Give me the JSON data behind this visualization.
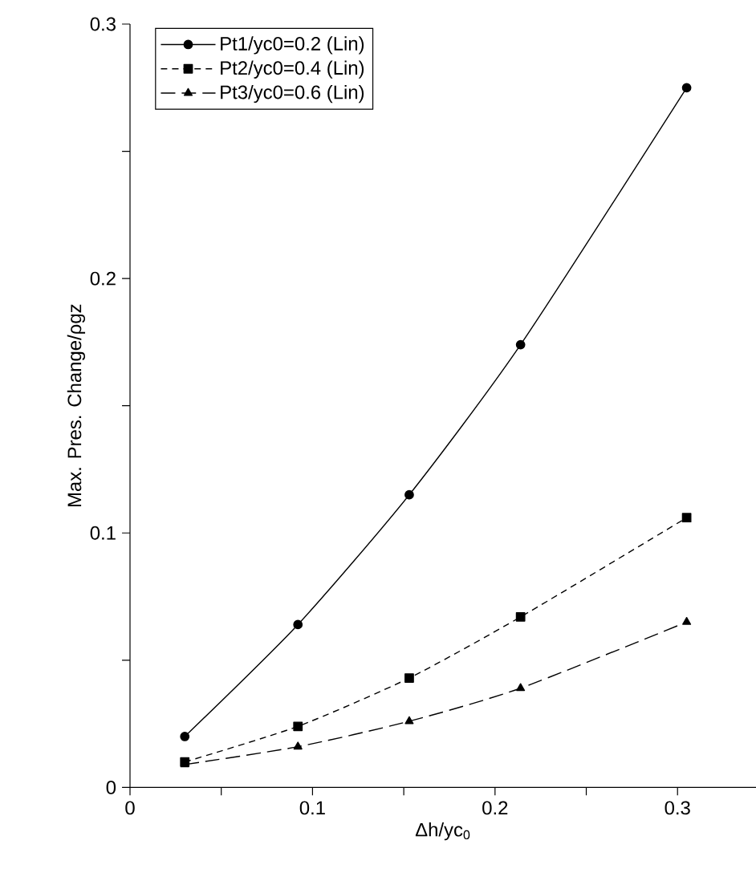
{
  "chart_data": {
    "type": "line",
    "xlabel": "Δh/yc$_{0}$",
    "ylabel": "Max. Pres. Change/ρgz",
    "x": [
      0.03,
      0.092,
      0.153,
      0.214,
      0.305
    ],
    "series": [
      {
        "name": "Pt1/yc0=0.2 (Lin)",
        "color": "#000000",
        "marker": "circle",
        "line_style": "solid",
        "values": [
          0.02,
          0.064,
          0.115,
          0.174,
          0.275
        ]
      },
      {
        "name": "Pt2/yc0=0.4 (Lin)",
        "color": "#000000",
        "marker": "square",
        "line_style": "dashed",
        "values": [
          0.01,
          0.024,
          0.043,
          0.067,
          0.106
        ]
      },
      {
        "name": "Pt3/yc0=0.6 (Lin)",
        "color": "#000000",
        "marker": "triangle",
        "line_style": "long dashed",
        "values": [
          0.009,
          0.016,
          0.026,
          0.039,
          0.065
        ]
      }
    ],
    "xlim": [
      0,
      0.343
    ],
    "ylim": [
      0,
      0.3
    ],
    "xticks": [
      0,
      {
        "value": 0.05,
        "label": null
      },
      0.1,
      {
        "value": 0.15,
        "label": null
      },
      0.2,
      {
        "value": 0.25,
        "label": null
      },
      0.3
    ],
    "yticks": [
      0,
      {
        "value": 0.05,
        "label": null
      },
      0.1,
      {
        "value": 0.15,
        "label": null
      },
      0.2,
      {
        "value": 0.25,
        "label": null
      },
      0.3
    ],
    "grid": false,
    "legend": "top left"
  }
}
